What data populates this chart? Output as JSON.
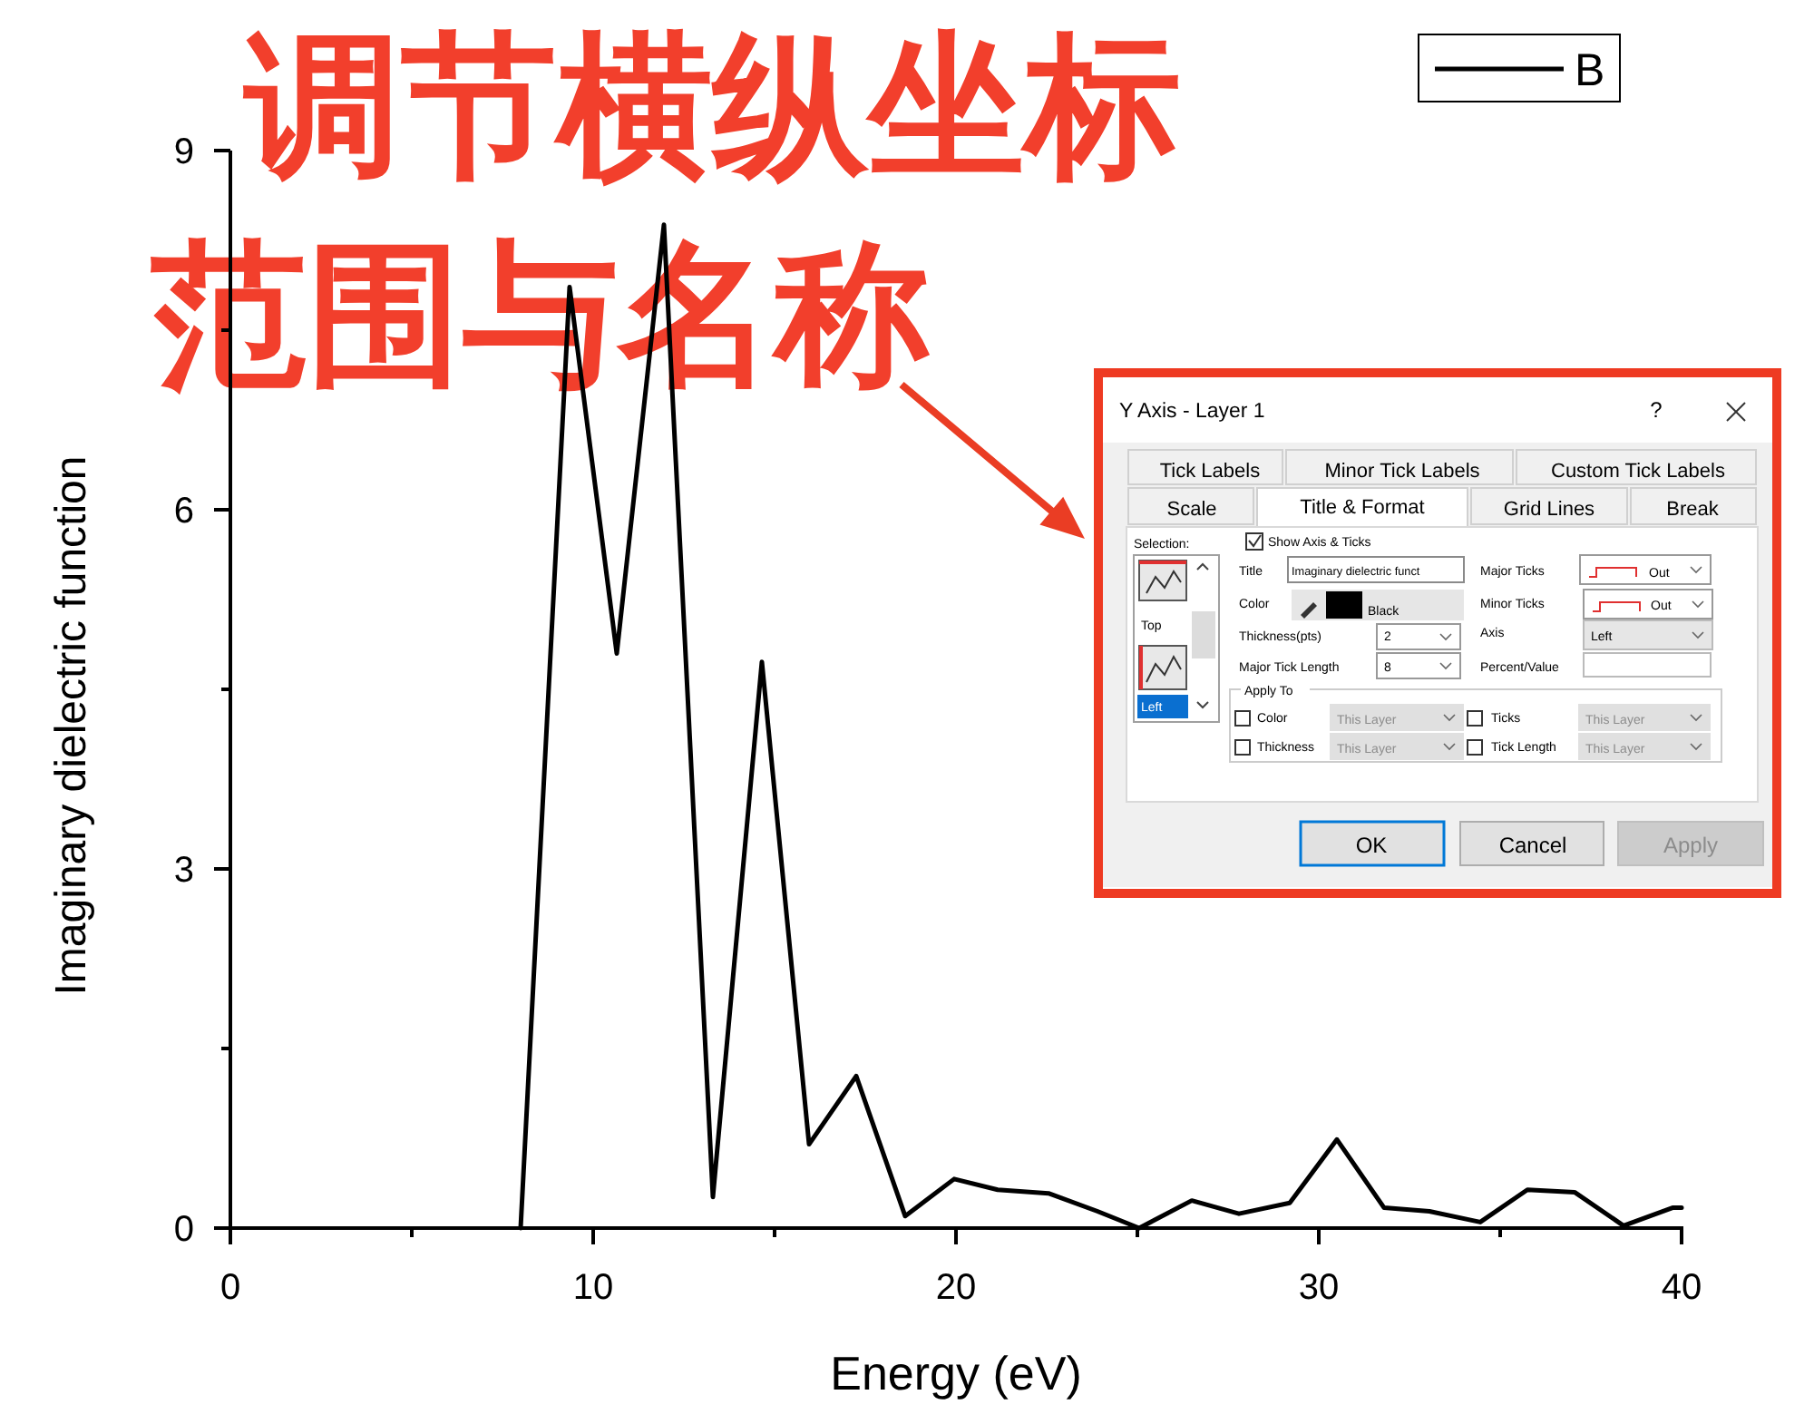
{
  "chart_data": {
    "type": "line",
    "xlabel": "Energy (eV)",
    "ylabel": "Imaginary dielectric function",
    "xlim": [
      0,
      40
    ],
    "ylim": [
      0,
      9
    ],
    "xticks": [
      0,
      {
        "value": 5,
        "label": null
      },
      10,
      {
        "value": 15,
        "label": null
      },
      20,
      {
        "value": 25,
        "label": null
      },
      30,
      {
        "value": 35,
        "label": null
      },
      40
    ],
    "yticks": [
      0,
      {
        "value": 1.5,
        "label": null
      },
      3,
      {
        "value": 4.5,
        "label": null
      },
      6,
      {
        "value": 7.5,
        "label": null
      },
      9
    ],
    "legend": "top right",
    "series": [
      {
        "name": "B",
        "color": "#000000",
        "x": [
          8,
          9.35,
          10.65,
          11.95,
          13.3,
          14.65,
          15.95,
          17.25,
          18.6,
          19.95,
          21.15,
          22.55,
          23.9,
          25.05,
          26.5,
          27.8,
          29.2,
          30.5,
          31.8,
          33.05,
          34.45,
          35.75,
          37.05,
          38.4,
          39.75,
          40
        ],
        "values": [
          0,
          7.86,
          4.8,
          8.38,
          0.26,
          4.73,
          0.7,
          1.27,
          0.1,
          0.41,
          0.32,
          0.29,
          0.14,
          0,
          0.23,
          0.12,
          0.21,
          0.74,
          0.17,
          0.14,
          0.05,
          0.32,
          0.3,
          0.02,
          0.17,
          0.17
        ]
      }
    ],
    "annotations": [
      "调节横纵坐标",
      "范围与名称",
      "Y Axis - Layer 1",
      "?",
      "Tick Labels",
      "Minor Tick Labels",
      "Custom Tick Labels",
      "Scale",
      "Title & Format",
      "Grid Lines",
      "Break",
      "Selection:",
      "Show Axis & Ticks",
      "Title",
      "Imaginary dielectric funct",
      "Major Ticks",
      "Out",
      "Color",
      "Black",
      "Minor Ticks",
      "Out",
      "Top",
      "Thickness(pts)",
      "2",
      "Axis",
      "Left",
      "Major Tick Length",
      "8",
      "Percent/Value",
      "Left",
      "Apply To",
      "Color",
      "This Layer",
      "Thickness",
      "This Layer",
      "Ticks",
      "This Layer",
      "Tick Length",
      "This Layer",
      "OK",
      "Cancel",
      "Apply"
    ]
  }
}
